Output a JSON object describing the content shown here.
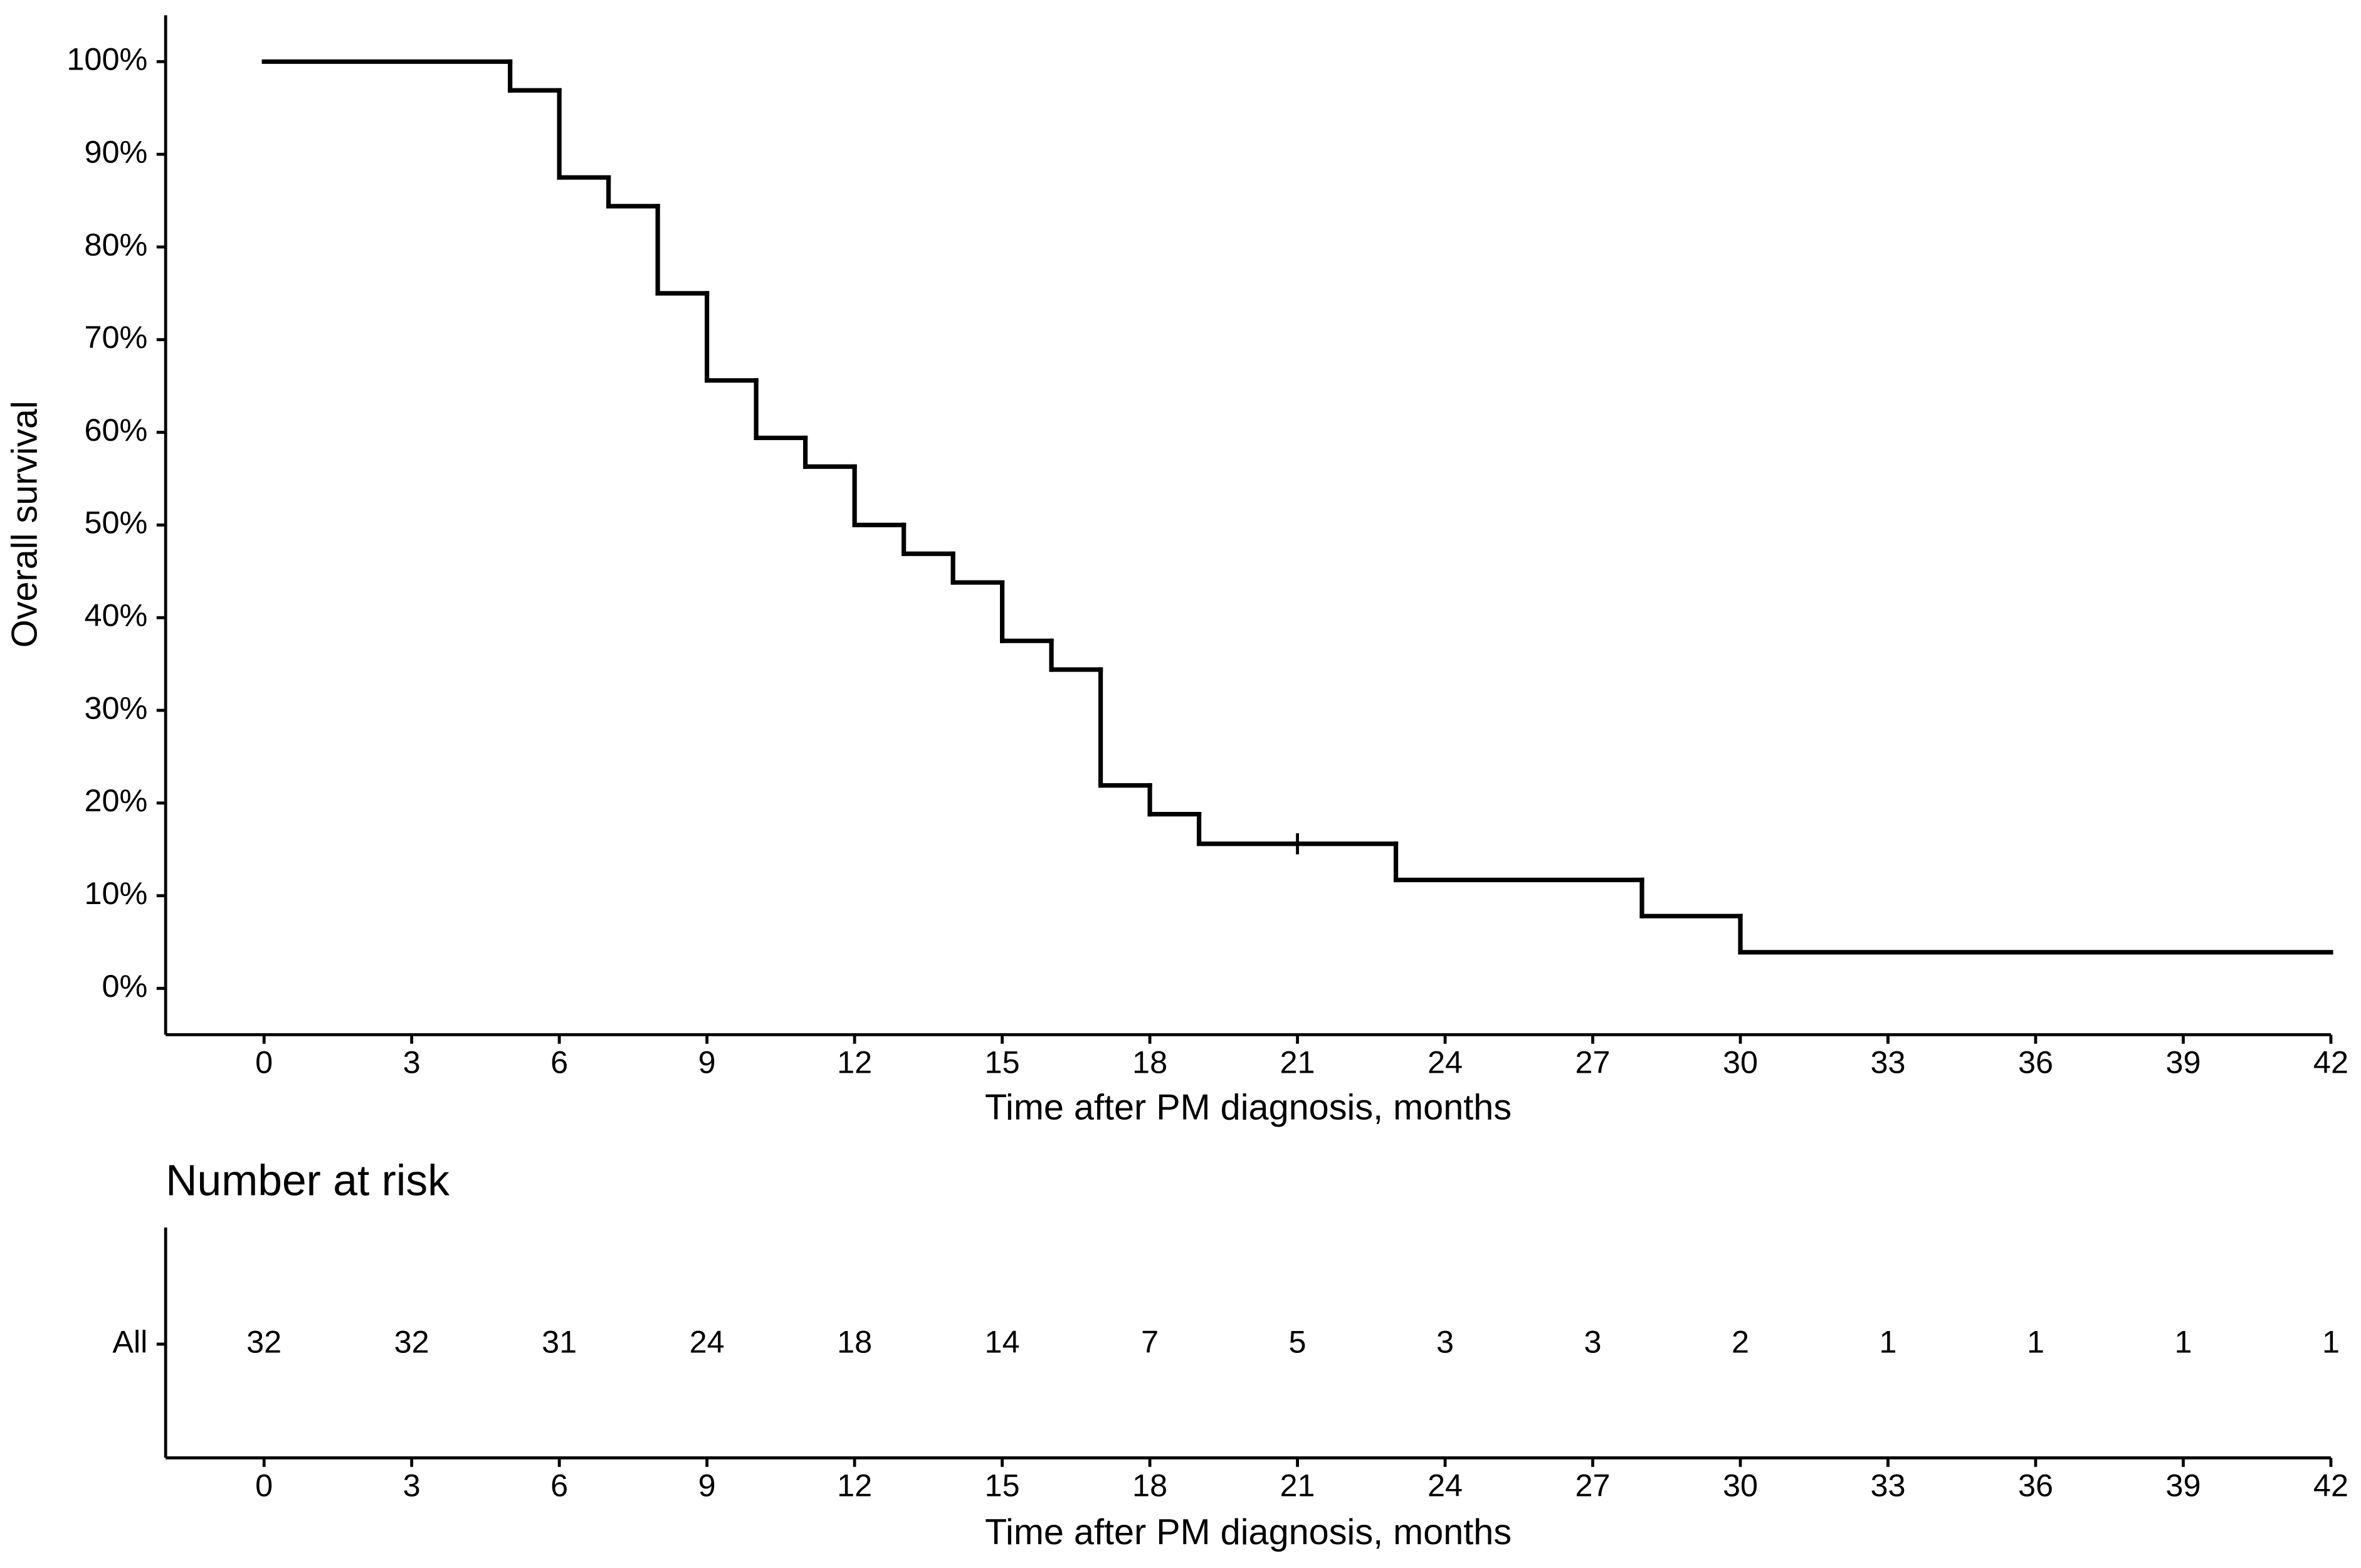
{
  "chart_data": [
    {
      "type": "step",
      "xlabel": "Time after PM diagnosis, months",
      "ylabel": "Overall survival",
      "x": [
        0,
        5,
        6,
        7,
        8,
        9,
        10,
        11,
        12,
        13,
        14,
        15,
        16,
        17,
        18,
        19,
        23,
        28,
        30
      ],
      "values": [
        100,
        96.9,
        87.5,
        84.4,
        75,
        65.6,
        59.4,
        56.3,
        50,
        46.9,
        43.8,
        37.5,
        34.4,
        21.9,
        18.8,
        15.6,
        11.7,
        7.8,
        3.9
      ],
      "color": "#000000",
      "censored": {
        "x": [
          21
        ],
        "values": [
          15.6
        ]
      },
      "xlim": [
        -2,
        42
      ],
      "ylim": [
        -5,
        105
      ],
      "xticks": [
        0,
        3,
        6,
        9,
        12,
        15,
        18,
        21,
        24,
        27,
        30,
        33,
        36,
        39,
        42
      ],
      "yticks": [
        {
          "value": 0,
          "label": "0%"
        },
        {
          "value": 10,
          "label": "10%"
        },
        {
          "value": 20,
          "label": "20%"
        },
        {
          "value": 30,
          "label": "30%"
        },
        {
          "value": 40,
          "label": "40%"
        },
        {
          "value": 50,
          "label": "50%"
        },
        {
          "value": 60,
          "label": "60%"
        },
        {
          "value": 70,
          "label": "70%"
        },
        {
          "value": 80,
          "label": "80%"
        },
        {
          "value": 90,
          "label": "90%"
        },
        {
          "value": 100,
          "label": "100%"
        }
      ],
      "grid": false
    },
    {
      "type": "risk_table",
      "title": "Number at risk",
      "xlabel": "Time after PM diagnosis, months",
      "x": [
        0,
        3,
        6,
        9,
        12,
        15,
        18,
        21,
        24,
        27,
        30,
        33,
        36,
        39,
        42
      ],
      "series": [
        {
          "name": "All",
          "values": [
            32,
            32,
            31,
            24,
            18,
            14,
            7,
            5,
            3,
            3,
            2,
            1,
            1,
            1,
            1
          ]
        }
      ],
      "xlim": [
        -2,
        42
      ],
      "xticks": [
        0,
        3,
        6,
        9,
        12,
        15,
        18,
        21,
        24,
        27,
        30,
        33,
        36,
        39,
        42
      ]
    }
  ]
}
